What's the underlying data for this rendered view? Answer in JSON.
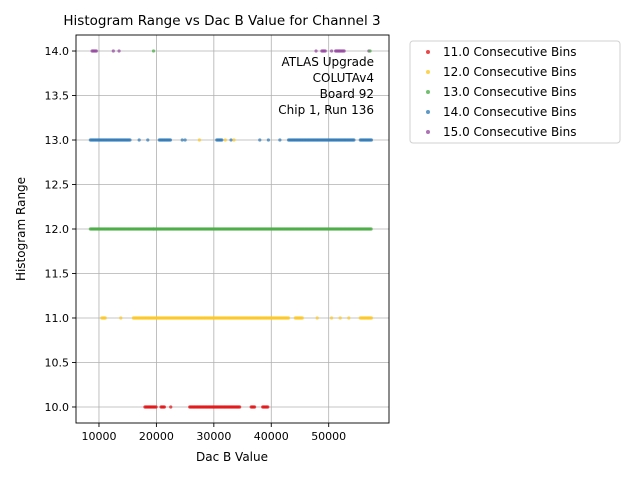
{
  "chart_data": {
    "type": "scatter",
    "title": "Histogram Range vs Dac B Value for Channel 3",
    "xlabel": "Dac B Value",
    "ylabel": "Histogram Range",
    "xlim": [
      6000,
      60500
    ],
    "ylim": [
      9.82,
      14.18
    ],
    "xticks": [
      10000,
      20000,
      30000,
      40000,
      50000
    ],
    "xtick_labels": [
      "10000",
      "20000",
      "30000",
      "40000",
      "50000"
    ],
    "yticks": [
      10.0,
      10.5,
      11.0,
      11.5,
      12.0,
      12.5,
      13.0,
      13.5,
      14.0
    ],
    "ytick_labels": [
      "10.0",
      "10.5",
      "11.0",
      "11.5",
      "12.0",
      "12.5",
      "13.0",
      "13.5",
      "14.0"
    ],
    "grid": true,
    "legend_position": "outside-right-top",
    "annotation": [
      "ATLAS Upgrade",
      "COLUTAv4",
      "Board 92",
      "Chip 1, Run 136"
    ],
    "series": [
      {
        "name": "11.0 Consecutive Bins",
        "color": "#e41a1c",
        "y": 10.0,
        "ranges": [
          [
            18000,
            20000
          ],
          [
            20800,
            21500
          ],
          [
            25800,
            34500
          ],
          [
            36500,
            37200
          ],
          [
            38500,
            39500
          ]
        ],
        "extra_x": [
          22500
        ]
      },
      {
        "name": "12.0 Consecutive Bins",
        "color": "#fdc827",
        "y": 11.0,
        "ranges": [
          [
            10500,
            11200
          ],
          [
            16000,
            43000
          ],
          [
            44200,
            45500
          ],
          [
            55500,
            57500
          ]
        ],
        "extra_x": [
          13800,
          48000,
          50500,
          52000,
          53500
        ]
      },
      {
        "name": "13.0 Consecutive Bins",
        "color": "#4daf4a",
        "y": 12.0,
        "ranges": [
          [
            8500,
            57500
          ]
        ],
        "extra_x": [
          19500
        ]
      },
      {
        "name": "14.0 Consecutive Bins",
        "color": "#377eb8",
        "y": 13.0,
        "ranges": [
          [
            8500,
            15500
          ],
          [
            20500,
            22500
          ],
          [
            30500,
            31500
          ],
          [
            43000,
            54500
          ],
          [
            55500,
            57500
          ]
        ],
        "extra_x": [
          17000,
          18500,
          24500,
          25000,
          33000,
          38000,
          39500,
          41500
        ]
      },
      {
        "name": "15.0 Consecutive Bins",
        "color": "#984ea3",
        "y": 14.0,
        "ranges": [
          [
            8800,
            9600
          ],
          [
            48800,
            49500
          ],
          [
            51200,
            52800
          ]
        ],
        "extra_x": [
          12500,
          13500,
          47800,
          50500,
          57000
        ]
      }
    ],
    "overlay_at_13": {
      "color": "#fdc827",
      "x": [
        27500,
        32000,
        33500
      ]
    },
    "overlay_at_14": {
      "color": "#4daf4a",
      "x": [
        19500,
        57200
      ]
    }
  }
}
